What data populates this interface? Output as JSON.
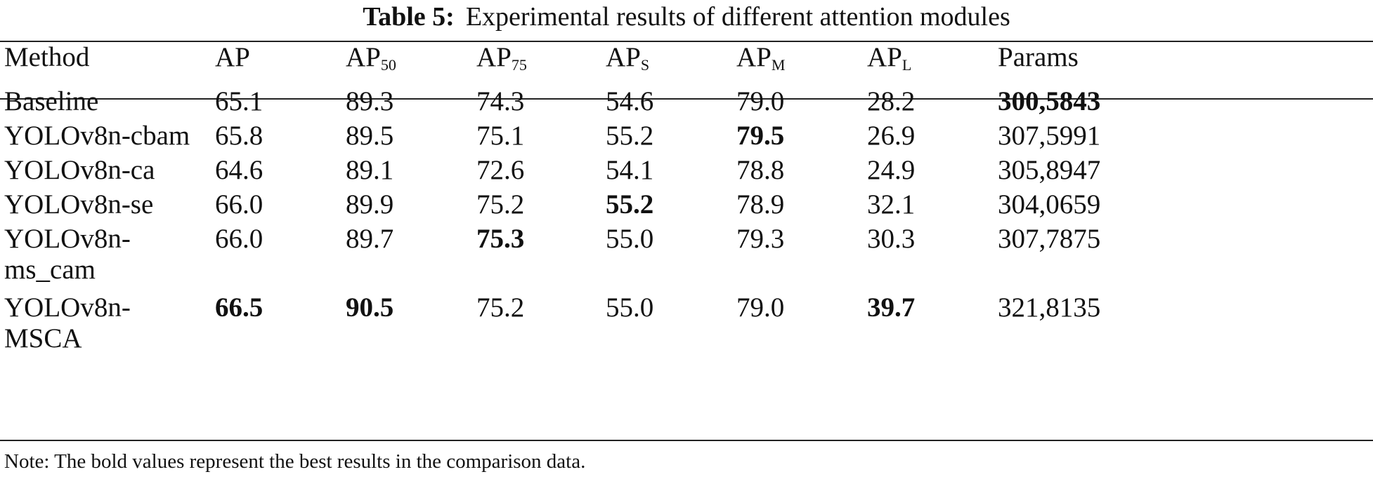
{
  "caption": {
    "label": "Table 5:",
    "text": "Experimental results of different attention modules"
  },
  "header": {
    "method": "Method",
    "ap": "AP",
    "ap50": {
      "base": "AP",
      "sub": "50"
    },
    "ap75": {
      "base": "AP",
      "sub": "75"
    },
    "aps": {
      "base": "AP",
      "sub": "S"
    },
    "apm": {
      "base": "AP",
      "sub": "M"
    },
    "apl": {
      "base": "AP",
      "sub": "L"
    },
    "params": "Params"
  },
  "rows": [
    {
      "method_line1": "Baseline",
      "method_line2": "",
      "ap": "65.1",
      "ap50": "89.3",
      "ap75": "74.3",
      "aps": "54.6",
      "apm": "79.0",
      "apl": "28.2",
      "params": "300,5843"
    },
    {
      "method_line1": "YOLOv8n-cbam",
      "method_line2": "",
      "ap": "65.8",
      "ap50": "89.5",
      "ap75": "75.1",
      "aps": "55.2",
      "apm": "79.5",
      "apl": "26.9",
      "params": "307,5991"
    },
    {
      "method_line1": "YOLOv8n-ca",
      "method_line2": "",
      "ap": "64.6",
      "ap50": "89.1",
      "ap75": "72.6",
      "aps": "54.1",
      "apm": "78.8",
      "apl": "24.9",
      "params": "305,8947"
    },
    {
      "method_line1": "YOLOv8n-se",
      "method_line2": "",
      "ap": "66.0",
      "ap50": "89.9",
      "ap75": "75.2",
      "aps": "55.2",
      "apm": "78.9",
      "apl": "32.1",
      "params": "304,0659"
    },
    {
      "method_line1": "YOLOv8n-",
      "method_line2": "ms_cam",
      "ap": "66.0",
      "ap50": "89.7",
      "ap75": "75.3",
      "aps": "55.0",
      "apm": "79.3",
      "apl": "30.3",
      "params": "307,7875"
    },
    {
      "method_line1": "YOLOv8n-",
      "method_line2": "MSCA",
      "ap": "66.5",
      "ap50": "90.5",
      "ap75": "75.2",
      "aps": "55.0",
      "apm": "79.0",
      "apl": "39.7",
      "params": "321,8135"
    }
  ],
  "bold_cells": [
    "0.params",
    "1.apm",
    "3.aps",
    "4.ap75",
    "5.ap",
    "5.ap50",
    "5.apl"
  ],
  "note": "Note: The bold values represent the best results in the comparison data."
}
